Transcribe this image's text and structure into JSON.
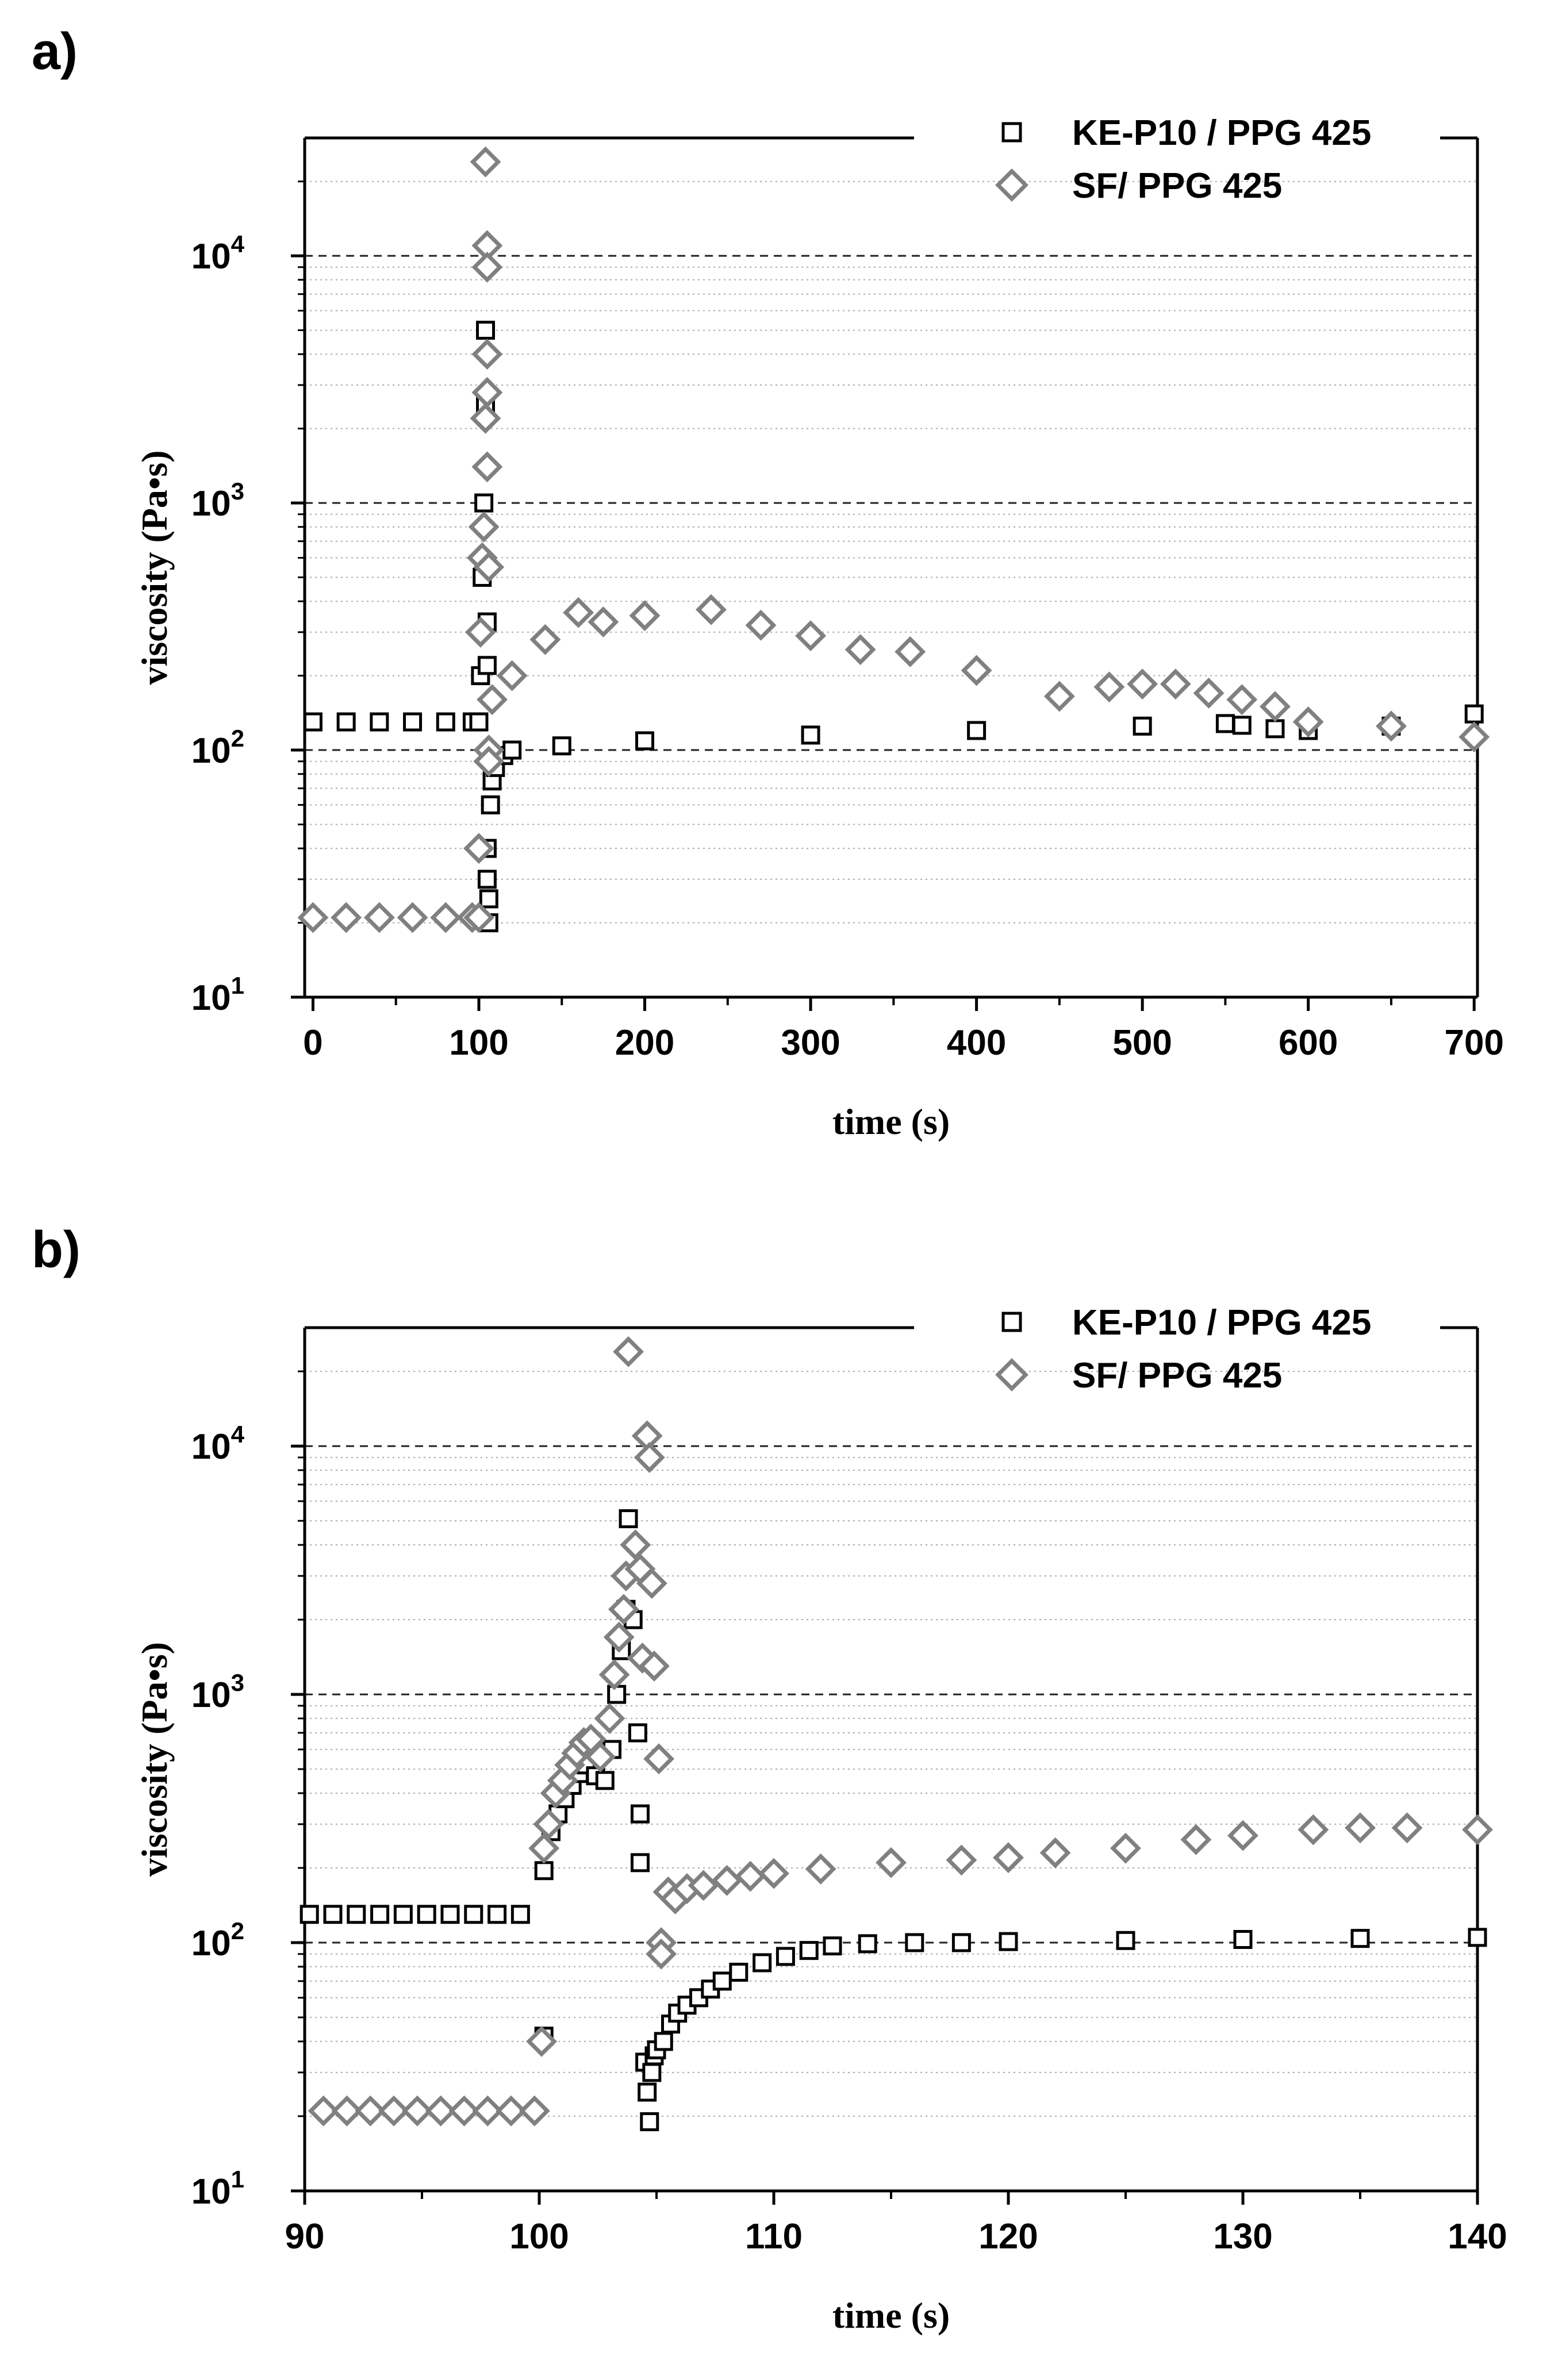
{
  "chart_data": [
    {
      "type": "scatter",
      "panel_label": "a)",
      "xlabel": "time   (s)",
      "ylabel": "viscosity   (Pa•s)",
      "xlim": [
        -5,
        702
      ],
      "ylim": [
        10,
        30000
      ],
      "yscale": "log",
      "x_ticks": [
        "0",
        "100",
        "200",
        "300",
        "400",
        "500",
        "600",
        "700"
      ],
      "x_tick_values": [
        0,
        100,
        200,
        300,
        400,
        500,
        600,
        700
      ],
      "y_ticks": [
        {
          "base": "10",
          "exp": "1"
        },
        {
          "base": "10",
          "exp": "2"
        },
        {
          "base": "10",
          "exp": "3"
        },
        {
          "base": "10",
          "exp": "4"
        }
      ],
      "y_tick_values": [
        10,
        100,
        1000,
        10000
      ],
      "legend_position": "top-right",
      "series": [
        {
          "name": "KE-P10 / PPG 425",
          "marker": "square",
          "color": "#000000",
          "points": [
            [
              0,
              130
            ],
            [
              20,
              130
            ],
            [
              40,
              130
            ],
            [
              60,
              130
            ],
            [
              80,
              130
            ],
            [
              96,
              130
            ],
            [
              100,
              130
            ],
            [
              101,
              200
            ],
            [
              102,
              500
            ],
            [
              103,
              1000
            ],
            [
              104,
              5000
            ],
            [
              104,
              2500
            ],
            [
              105,
              330
            ],
            [
              105,
              220
            ],
            [
              105,
              40
            ],
            [
              105,
              30
            ],
            [
              106,
              25
            ],
            [
              106,
              20
            ],
            [
              107,
              60
            ],
            [
              108,
              75
            ],
            [
              110,
              85
            ],
            [
              115,
              95
            ],
            [
              120,
              100
            ],
            [
              150,
              104
            ],
            [
              200,
              109
            ],
            [
              300,
              115
            ],
            [
              400,
              120
            ],
            [
              500,
              125
            ],
            [
              550,
              128
            ],
            [
              560,
              126
            ],
            [
              580,
              122
            ],
            [
              600,
              120
            ],
            [
              650,
              125
            ],
            [
              700,
              140
            ]
          ]
        },
        {
          "name": "SF/ PPG 425",
          "marker": "diamond",
          "color": "#808080",
          "points": [
            [
              0,
              21
            ],
            [
              20,
              21
            ],
            [
              40,
              21
            ],
            [
              60,
              21
            ],
            [
              80,
              21
            ],
            [
              96,
              21
            ],
            [
              100,
              21
            ],
            [
              100,
              40
            ],
            [
              101,
              300
            ],
            [
              102,
              600
            ],
            [
              103,
              800
            ],
            [
              104,
              2200
            ],
            [
              104,
              24000
            ],
            [
              105,
              11000
            ],
            [
              105,
              9000
            ],
            [
              105,
              4000
            ],
            [
              105,
              2800
            ],
            [
              105,
              1400
            ],
            [
              106,
              550
            ],
            [
              106,
              100
            ],
            [
              106,
              90
            ],
            [
              108,
              160
            ],
            [
              120,
              200
            ],
            [
              140,
              280
            ],
            [
              160,
              360
            ],
            [
              175,
              330
            ],
            [
              200,
              350
            ],
            [
              240,
              370
            ],
            [
              270,
              320
            ],
            [
              300,
              290
            ],
            [
              330,
              255
            ],
            [
              360,
              250
            ],
            [
              400,
              210
            ],
            [
              450,
              165
            ],
            [
              480,
              180
            ],
            [
              500,
              185
            ],
            [
              520,
              185
            ],
            [
              540,
              170
            ],
            [
              560,
              160
            ],
            [
              580,
              150
            ],
            [
              600,
              130
            ],
            [
              650,
              125
            ],
            [
              700,
              113
            ]
          ]
        }
      ]
    },
    {
      "type": "scatter",
      "panel_label": "b)",
      "xlabel": "time   (s)",
      "ylabel": "viscosity   (Pa•s)",
      "xlim": [
        90,
        140
      ],
      "ylim": [
        10,
        30000
      ],
      "yscale": "log",
      "x_ticks": [
        "90",
        "100",
        "110",
        "120",
        "130",
        "140"
      ],
      "x_tick_values": [
        90,
        100,
        110,
        120,
        130,
        140
      ],
      "y_ticks": [
        {
          "base": "10",
          "exp": "1"
        },
        {
          "base": "10",
          "exp": "2"
        },
        {
          "base": "10",
          "exp": "3"
        },
        {
          "base": "10",
          "exp": "4"
        }
      ],
      "y_tick_values": [
        10,
        100,
        1000,
        10000
      ],
      "legend_position": "top-right",
      "series": [
        {
          "name": "KE-P10 / PPG 425",
          "marker": "square",
          "color": "#000000",
          "points": [
            [
              90.2,
              130
            ],
            [
              91.2,
              130
            ],
            [
              92.2,
              130
            ],
            [
              93.2,
              130
            ],
            [
              94.2,
              130
            ],
            [
              95.2,
              130
            ],
            [
              96.2,
              130
            ],
            [
              97.2,
              130
            ],
            [
              98.2,
              130
            ],
            [
              99.2,
              130
            ],
            [
              100.2,
              42
            ],
            [
              100.2,
              195
            ],
            [
              100.5,
              280
            ],
            [
              100.8,
              330
            ],
            [
              101.1,
              380
            ],
            [
              101.4,
              430
            ],
            [
              101.7,
              480
            ],
            [
              102.0,
              520
            ],
            [
              102.4,
              470
            ],
            [
              102.8,
              450
            ],
            [
              103.1,
              600
            ],
            [
              103.3,
              1000
            ],
            [
              103.5,
              1500
            ],
            [
              103.7,
              2200
            ],
            [
              103.8,
              5100
            ],
            [
              104.0,
              2000
            ],
            [
              104.2,
              700
            ],
            [
              104.3,
              330
            ],
            [
              104.3,
              210
            ],
            [
              104.5,
              33
            ],
            [
              104.6,
              25
            ],
            [
              104.7,
              19
            ],
            [
              104.8,
              30
            ],
            [
              104.9,
              35
            ],
            [
              105.0,
              37
            ],
            [
              105.3,
              40
            ],
            [
              105.6,
              47
            ],
            [
              105.9,
              52
            ],
            [
              106.3,
              56
            ],
            [
              106.8,
              60
            ],
            [
              107.3,
              65
            ],
            [
              107.8,
              70
            ],
            [
              108.5,
              76
            ],
            [
              109.5,
              83
            ],
            [
              110.5,
              88
            ],
            [
              111.5,
              93
            ],
            [
              112.5,
              97
            ],
            [
              114,
              99
            ],
            [
              116,
              100
            ],
            [
              118,
              100
            ],
            [
              120,
              101
            ],
            [
              125,
              102
            ],
            [
              130,
              103
            ],
            [
              135,
              104
            ],
            [
              140,
              105
            ]
          ]
        },
        {
          "name": "SF/ PPG 425",
          "marker": "diamond",
          "color": "#808080",
          "points": [
            [
              90.8,
              21
            ],
            [
              91.8,
              21
            ],
            [
              92.8,
              21
            ],
            [
              93.8,
              21
            ],
            [
              94.8,
              21
            ],
            [
              95.8,
              21
            ],
            [
              96.8,
              21
            ],
            [
              97.8,
              21
            ],
            [
              98.8,
              21
            ],
            [
              99.8,
              21
            ],
            [
              100.1,
              40
            ],
            [
              100.2,
              240
            ],
            [
              100.4,
              300
            ],
            [
              100.7,
              400
            ],
            [
              101.0,
              450
            ],
            [
              101.3,
              520
            ],
            [
              101.6,
              580
            ],
            [
              101.9,
              640
            ],
            [
              102.2,
              660
            ],
            [
              102.6,
              560
            ],
            [
              103.0,
              800
            ],
            [
              103.2,
              1200
            ],
            [
              103.4,
              1700
            ],
            [
              103.6,
              2200
            ],
            [
              103.7,
              3000
            ],
            [
              103.8,
              24000
            ],
            [
              104.1,
              4000
            ],
            [
              104.3,
              3200
            ],
            [
              104.4,
              1400
            ],
            [
              104.6,
              11000
            ],
            [
              104.7,
              9000
            ],
            [
              104.8,
              2800
            ],
            [
              104.9,
              1300
            ],
            [
              105.1,
              550
            ],
            [
              105.2,
              100
            ],
            [
              105.2,
              90
            ],
            [
              105.5,
              160
            ],
            [
              105.8,
              150
            ],
            [
              106.3,
              165
            ],
            [
              107,
              170
            ],
            [
              108,
              178
            ],
            [
              109,
              185
            ],
            [
              110,
              190
            ],
            [
              112,
              198
            ],
            [
              115,
              210
            ],
            [
              118,
              215
            ],
            [
              120,
              220
            ],
            [
              122,
              230
            ],
            [
              125,
              240
            ],
            [
              128,
              260
            ],
            [
              130,
              270
            ],
            [
              133,
              285
            ],
            [
              135,
              290
            ],
            [
              137,
              290
            ],
            [
              140,
              285
            ]
          ]
        }
      ]
    }
  ]
}
